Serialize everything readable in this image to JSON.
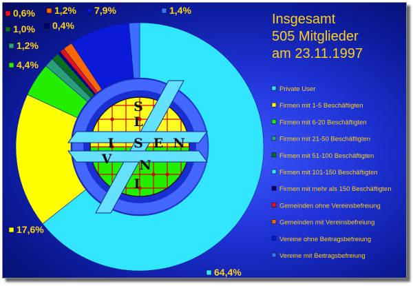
{
  "chart_data": {
    "type": "pie",
    "title": [
      "Insgesamt",
      "505 Mitglieder",
      "am 23.11.1997"
    ],
    "legend_position": "right",
    "slices": [
      {
        "label": "Private User",
        "value": 64.4,
        "value_label": "64,4%",
        "color": "#33e6ff"
      },
      {
        "label": "Firmen mit 1-5 Beschäftigten",
        "value": 17.6,
        "value_label": "17,6%",
        "color": "#ffff00"
      },
      {
        "label": "Firmen mit 6-20 Beschäftigten",
        "value": 4.4,
        "value_label": "4,4%",
        "color": "#22ee00"
      },
      {
        "label": "Firmen mit 21-50 Beschäftigten",
        "value": 1.2,
        "value_label": "1,2%",
        "color": "#2aa07a"
      },
      {
        "label": "Firmen mit 51-100 Beschäftigten",
        "value": 1.0,
        "value_label": "1,0%",
        "color": "#0b6e1e"
      },
      {
        "label": "Firmen mit 101-150 Beschäftigten",
        "value": 0.0,
        "value_label": "",
        "color": "#33e6ff"
      },
      {
        "label": "Firmen mit mehr als 150 Beschäftigten",
        "value": 0.4,
        "value_label": "0,4%",
        "color": "#00007a"
      },
      {
        "label": "Gemeinden ohne Vereinsbefreiung",
        "value": 0.6,
        "value_label": "0,6%",
        "color": "#ee1111"
      },
      {
        "label": "Gemeinden mit Vereinsbefreiung",
        "value": 1.2,
        "value_label": "1,2%",
        "color": "#ff6600"
      },
      {
        "label": "Vereine ohne Beitragsbefreiung",
        "value": 7.9,
        "value_label": "7,9%",
        "color": "#0a1ad8"
      },
      {
        "label": "Vereine mit Beitragsbefreiung",
        "value": 1.4,
        "value_label": "1,4%",
        "color": "#3d6fff"
      }
    ]
  },
  "logo": {
    "letters": [
      "S",
      "L",
      "I",
      "S",
      "E",
      "N",
      "V",
      "N",
      "I"
    ]
  }
}
